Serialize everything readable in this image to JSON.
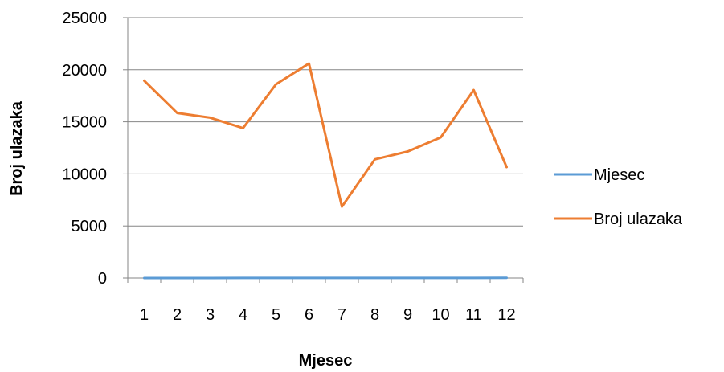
{
  "chart_data": {
    "type": "line",
    "categories": [
      "1",
      "2",
      "3",
      "4",
      "5",
      "6",
      "7",
      "8",
      "9",
      "10",
      "11",
      "12"
    ],
    "series": [
      {
        "name": "Mjesec",
        "color": "#5B9BD5",
        "values": [
          1,
          2,
          3,
          4,
          5,
          6,
          7,
          8,
          9,
          10,
          11,
          12
        ]
      },
      {
        "name": "Broj ulazaka",
        "color": "#ED7D31",
        "values": [
          18950,
          15850,
          15400,
          14400,
          18600,
          20600,
          6850,
          11400,
          12150,
          13500,
          18050,
          10650
        ]
      }
    ],
    "xlabel": "Mjesec",
    "ylabel": "Broj ulazaka",
    "ylim": [
      0,
      25000
    ],
    "yticks": [
      "0",
      "5000",
      "10000",
      "15000",
      "20000",
      "25000"
    ],
    "grid": true,
    "legend_position": "right"
  }
}
